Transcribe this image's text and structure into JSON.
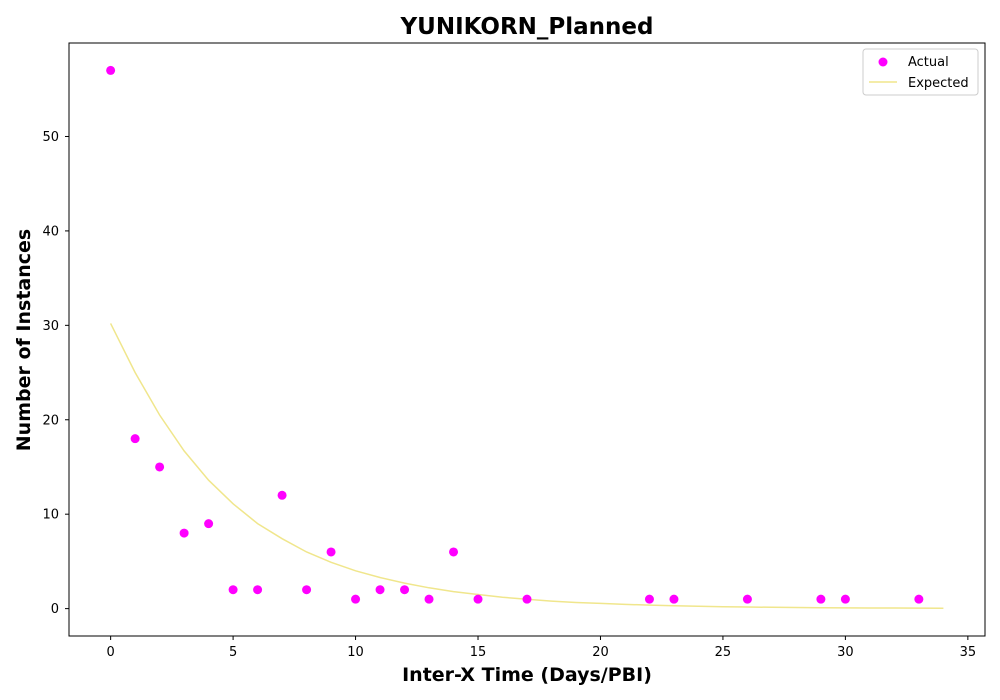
{
  "chart_data": {
    "type": "scatter",
    "title": "YUNIKORN_Planned",
    "xlabel": "Inter-X Time (Days/PBI)",
    "ylabel": "Number of Instances",
    "xlim": [
      -1.7,
      35.7
    ],
    "ylim": [
      -2.9,
      59.9
    ],
    "xticks": [
      0,
      5,
      10,
      15,
      20,
      25,
      30,
      35
    ],
    "yticks": [
      0,
      10,
      20,
      30,
      40,
      50
    ],
    "grid": false,
    "legend_position": "top-right",
    "series": [
      {
        "name": "Actual",
        "kind": "scatter",
        "color": "#ff00ff",
        "points": [
          [
            0,
            57
          ],
          [
            1,
            18
          ],
          [
            2,
            15
          ],
          [
            3,
            8
          ],
          [
            4,
            9
          ],
          [
            5,
            2
          ],
          [
            6,
            2
          ],
          [
            7,
            12
          ],
          [
            8,
            2
          ],
          [
            9,
            6
          ],
          [
            10,
            1
          ],
          [
            11,
            2
          ],
          [
            12,
            2
          ],
          [
            13,
            1
          ],
          [
            14,
            6
          ],
          [
            15,
            1
          ],
          [
            17,
            1
          ],
          [
            22,
            1
          ],
          [
            23,
            1
          ],
          [
            26,
            1
          ],
          [
            29,
            1
          ],
          [
            30,
            1
          ],
          [
            33,
            1
          ]
        ]
      },
      {
        "name": "Expected",
        "kind": "line",
        "color": "#f0e68c",
        "points": [
          [
            0,
            30.2
          ],
          [
            1,
            25.0
          ],
          [
            2,
            20.5
          ],
          [
            3,
            16.7
          ],
          [
            4,
            13.6
          ],
          [
            5,
            11.1
          ],
          [
            6,
            9.0
          ],
          [
            7,
            7.4
          ],
          [
            8,
            6.0
          ],
          [
            9,
            4.9
          ],
          [
            10,
            4.0
          ],
          [
            11,
            3.3
          ],
          [
            12,
            2.7
          ],
          [
            13,
            2.2
          ],
          [
            14,
            1.8
          ],
          [
            15,
            1.5
          ],
          [
            16,
            1.2
          ],
          [
            17,
            1.0
          ],
          [
            18,
            0.8
          ],
          [
            19,
            0.65
          ],
          [
            20,
            0.55
          ],
          [
            21,
            0.45
          ],
          [
            22,
            0.37
          ],
          [
            23,
            0.3
          ],
          [
            24,
            0.25
          ],
          [
            25,
            0.2
          ],
          [
            26,
            0.17
          ],
          [
            27,
            0.14
          ],
          [
            28,
            0.12
          ],
          [
            29,
            0.1
          ],
          [
            30,
            0.08
          ],
          [
            31,
            0.07
          ],
          [
            32,
            0.06
          ],
          [
            33,
            0.05
          ],
          [
            34,
            0.04
          ]
        ]
      }
    ]
  }
}
